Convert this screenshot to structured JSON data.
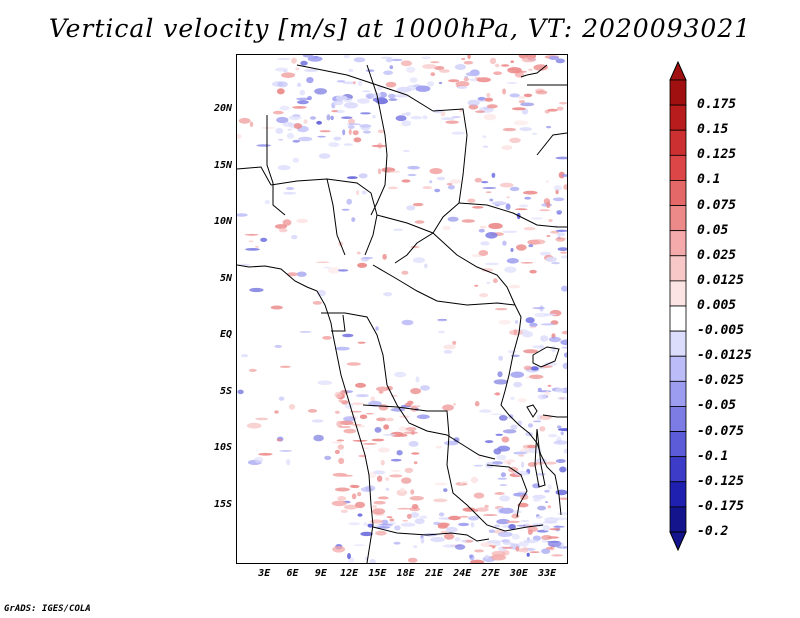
{
  "title": "Vertical velocity [m/s] at 1000hPa, VT: 2020093021",
  "credit": "GrADS: IGES/COLA",
  "map": {
    "lon_range": [
      0,
      35
    ],
    "lat_range": [
      -20,
      25
    ],
    "x_ticks": [
      {
        "lon": 3,
        "label": "3E"
      },
      {
        "lon": 6,
        "label": "6E"
      },
      {
        "lon": 9,
        "label": "9E"
      },
      {
        "lon": 12,
        "label": "12E"
      },
      {
        "lon": 15,
        "label": "15E"
      },
      {
        "lon": 18,
        "label": "18E"
      },
      {
        "lon": 21,
        "label": "21E"
      },
      {
        "lon": 24,
        "label": "24E"
      },
      {
        "lon": 27,
        "label": "27E"
      },
      {
        "lon": 30,
        "label": "30E"
      },
      {
        "lon": 33,
        "label": "33E"
      }
    ],
    "y_ticks": [
      {
        "lat": 20,
        "label": "20N"
      },
      {
        "lat": 15,
        "label": "15N"
      },
      {
        "lat": 10,
        "label": "10N"
      },
      {
        "lat": 5,
        "label": "5N"
      },
      {
        "lat": 0,
        "label": "EQ"
      },
      {
        "lat": -5,
        "label": "5S"
      },
      {
        "lat": -10,
        "label": "10S"
      },
      {
        "lat": -15,
        "label": "15S"
      }
    ]
  },
  "colorbar": {
    "levels": [
      {
        "label": "0.175",
        "color": "#a01010"
      },
      {
        "label": "0.15",
        "color": "#b81c1c"
      },
      {
        "label": "0.125",
        "color": "#cc3030"
      },
      {
        "label": "0.1",
        "color": "#dc4646"
      },
      {
        "label": "0.075",
        "color": "#e46868"
      },
      {
        "label": "0.05",
        "color": "#ec8a8a"
      },
      {
        "label": "0.025",
        "color": "#f4aaaa"
      },
      {
        "label": "0.0125",
        "color": "#f8c8c8"
      },
      {
        "label": "0.005",
        "color": "#fce4e4"
      },
      {
        "label": "-0.005",
        "color": "#ffffff"
      },
      {
        "label": "-0.0125",
        "color": "#dcdcfc"
      },
      {
        "label": "-0.025",
        "color": "#bcbcf8"
      },
      {
        "label": "-0.05",
        "color": "#9c9cf0"
      },
      {
        "label": "-0.075",
        "color": "#7c7ce4"
      },
      {
        "label": "-0.1",
        "color": "#5c5cd8"
      },
      {
        "label": "-0.125",
        "color": "#3c3cc8"
      },
      {
        "label": "-0.175",
        "color": "#2020b0"
      },
      {
        "label": "-0.2",
        "color": "#14148c"
      }
    ],
    "cap_top_color": "#a01010",
    "cap_bottom_color": "#14148c"
  }
}
